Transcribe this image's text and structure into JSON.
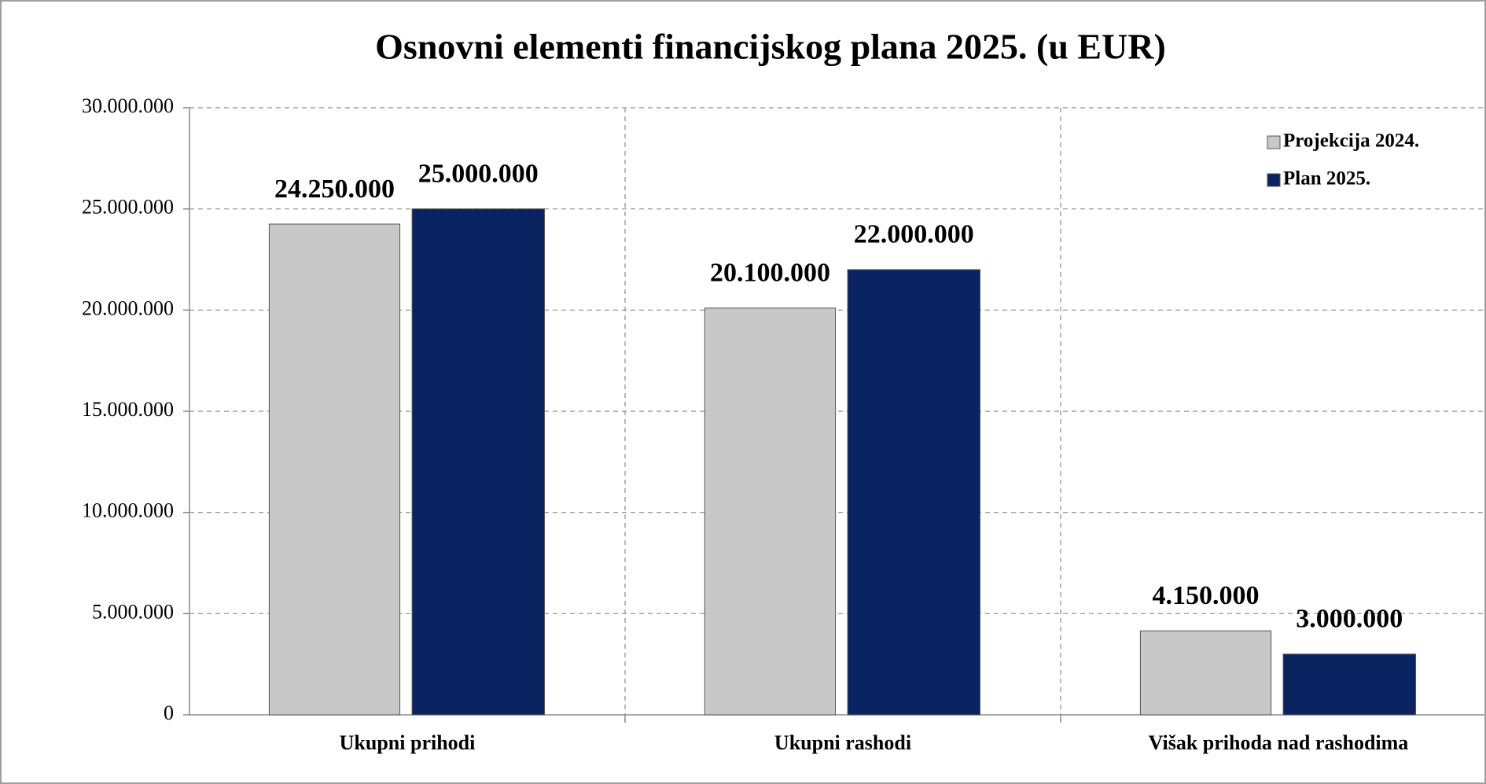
{
  "chart_data": {
    "type": "bar",
    "title": "Osnovni elementi financijskog plana 2025. (u EUR)",
    "categories": [
      "Ukupni prihodi",
      "Ukupni rashodi",
      "Višak prihoda nad rashodima"
    ],
    "series": [
      {
        "name": "Projekcija 2024.",
        "color": "#c8c8c8",
        "values": [
          24250000,
          20100000,
          4150000
        ],
        "value_labels": [
          "24.250.000",
          "20.100.000",
          "4.150.000"
        ]
      },
      {
        "name": "Plan 2025.",
        "color": "#0a2462",
        "values": [
          25000000,
          22000000,
          3000000
        ],
        "value_labels": [
          "25.000.000",
          "22.000.000",
          "3.000.000"
        ]
      }
    ],
    "ylim": [
      0,
      30000000
    ],
    "yticks": [
      0,
      {
        "value": 5000000,
        "label": "5.000.000"
      },
      {
        "value": 10000000,
        "label": "10.000.000"
      },
      {
        "value": 15000000,
        "label": "15.000.000"
      },
      {
        "value": 20000000,
        "label": "20.000.000"
      },
      {
        "value": 25000000,
        "label": "25.000.000"
      },
      {
        "value": 30000000,
        "label": "30.000.000"
      }
    ],
    "grid": true,
    "legend": "top-right"
  }
}
